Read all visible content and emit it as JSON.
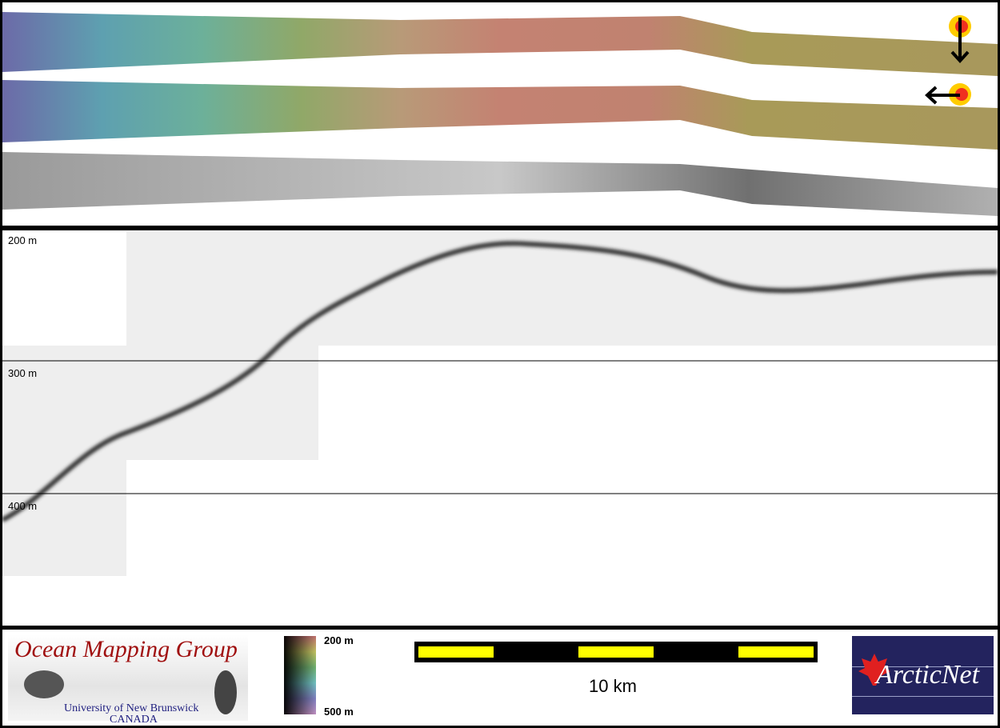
{
  "depth_labels": [
    "200 m",
    "300 m",
    "400 m"
  ],
  "colorbar": {
    "top_label": "200 m",
    "bottom_label": "500 m"
  },
  "scale_bar": {
    "label": "10 km",
    "color": "#ffff00"
  },
  "logos": {
    "omg_title": "Ocean Mapping Group",
    "omg_sub1": "University of New Brunswick",
    "omg_sub2": "CANADA",
    "arcticnet": "ArcticNet"
  },
  "icons": [
    "sun-illumination-south-icon",
    "sun-illumination-west-icon"
  ]
}
